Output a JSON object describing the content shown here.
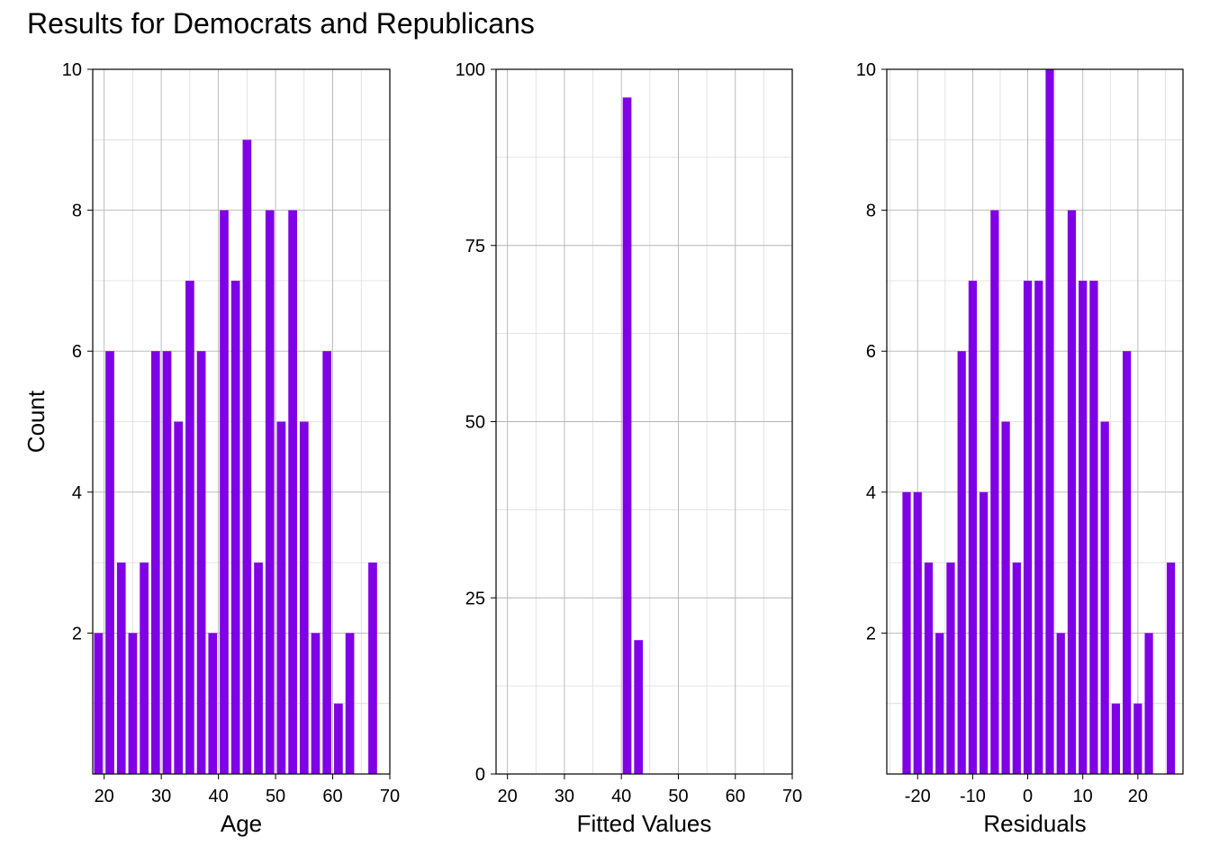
{
  "title": "Results for Democrats and Republicans",
  "colors": {
    "bar": "#7F00E6",
    "major_grid": "#b4b4b4",
    "minor_grid": "#dcdcdc",
    "frame": "#000000"
  },
  "chart_data": [
    {
      "type": "bar",
      "subtype": "histogram",
      "xlabel": "Age",
      "ylabel": "Count",
      "xlim": [
        18,
        70
      ],
      "ylim": [
        0,
        10
      ],
      "xticks": [
        20,
        30,
        40,
        50,
        60,
        70
      ],
      "xtick_labels": [
        "20",
        "30",
        "40",
        "50",
        "60",
        "70"
      ],
      "yticks": [
        2,
        4,
        6,
        8,
        10
      ],
      "ytick_labels": [
        "2",
        "4",
        "6",
        "8",
        "10"
      ],
      "bin_width": 2,
      "grid": true,
      "bins": [
        {
          "x": 19,
          "count": 2
        },
        {
          "x": 21,
          "count": 6
        },
        {
          "x": 23,
          "count": 3
        },
        {
          "x": 25,
          "count": 2
        },
        {
          "x": 27,
          "count": 3
        },
        {
          "x": 29,
          "count": 6
        },
        {
          "x": 31,
          "count": 6
        },
        {
          "x": 33,
          "count": 5
        },
        {
          "x": 35,
          "count": 7
        },
        {
          "x": 37,
          "count": 6
        },
        {
          "x": 39,
          "count": 2
        },
        {
          "x": 41,
          "count": 8
        },
        {
          "x": 43,
          "count": 7
        },
        {
          "x": 45,
          "count": 9
        },
        {
          "x": 47,
          "count": 3
        },
        {
          "x": 49,
          "count": 8
        },
        {
          "x": 51,
          "count": 5
        },
        {
          "x": 53,
          "count": 8
        },
        {
          "x": 55,
          "count": 5
        },
        {
          "x": 57,
          "count": 2
        },
        {
          "x": 59,
          "count": 6
        },
        {
          "x": 61,
          "count": 1
        },
        {
          "x": 63,
          "count": 2
        },
        {
          "x": 67,
          "count": 3
        }
      ]
    },
    {
      "type": "bar",
      "subtype": "histogram",
      "xlabel": "Fitted Values",
      "ylabel": "",
      "xlim": [
        18,
        70
      ],
      "ylim": [
        0,
        100
      ],
      "xticks": [
        20,
        30,
        40,
        50,
        60,
        70
      ],
      "xtick_labels": [
        "20",
        "30",
        "40",
        "50",
        "60",
        "70"
      ],
      "yticks": [
        0,
        25,
        50,
        75,
        100
      ],
      "ytick_labels": [
        "0",
        "25",
        "50",
        "75",
        "100"
      ],
      "bin_width": 2,
      "grid": true,
      "bins": [
        {
          "x": 41,
          "count": 96
        },
        {
          "x": 43,
          "count": 19
        }
      ]
    },
    {
      "type": "bar",
      "subtype": "histogram",
      "xlabel": "Residuals",
      "ylabel": "",
      "xlim": [
        -25.6,
        28.2
      ],
      "ylim": [
        0,
        10
      ],
      "xticks": [
        -20,
        -10,
        0,
        10,
        20
      ],
      "xtick_labels": [
        "-20",
        "-10",
        "0",
        "10",
        "20"
      ],
      "yticks": [
        2,
        4,
        6,
        8,
        10
      ],
      "ytick_labels": [
        "2",
        "4",
        "6",
        "8",
        "10"
      ],
      "bin_width": 2,
      "grid": true,
      "bins": [
        {
          "x": -22,
          "count": 4
        },
        {
          "x": -20,
          "count": 4
        },
        {
          "x": -18,
          "count": 3
        },
        {
          "x": -16,
          "count": 2
        },
        {
          "x": -14,
          "count": 3
        },
        {
          "x": -12,
          "count": 6
        },
        {
          "x": -10,
          "count": 7
        },
        {
          "x": -8,
          "count": 4
        },
        {
          "x": -6,
          "count": 8
        },
        {
          "x": -4,
          "count": 5
        },
        {
          "x": -2,
          "count": 3
        },
        {
          "x": 0,
          "count": 7
        },
        {
          "x": 2,
          "count": 7
        },
        {
          "x": 4,
          "count": 10
        },
        {
          "x": 6,
          "count": 2
        },
        {
          "x": 8,
          "count": 8
        },
        {
          "x": 10,
          "count": 7
        },
        {
          "x": 12,
          "count": 7
        },
        {
          "x": 14,
          "count": 5
        },
        {
          "x": 16,
          "count": 1
        },
        {
          "x": 18,
          "count": 6
        },
        {
          "x": 20,
          "count": 1
        },
        {
          "x": 22,
          "count": 2
        },
        {
          "x": 26,
          "count": 3
        }
      ]
    }
  ]
}
